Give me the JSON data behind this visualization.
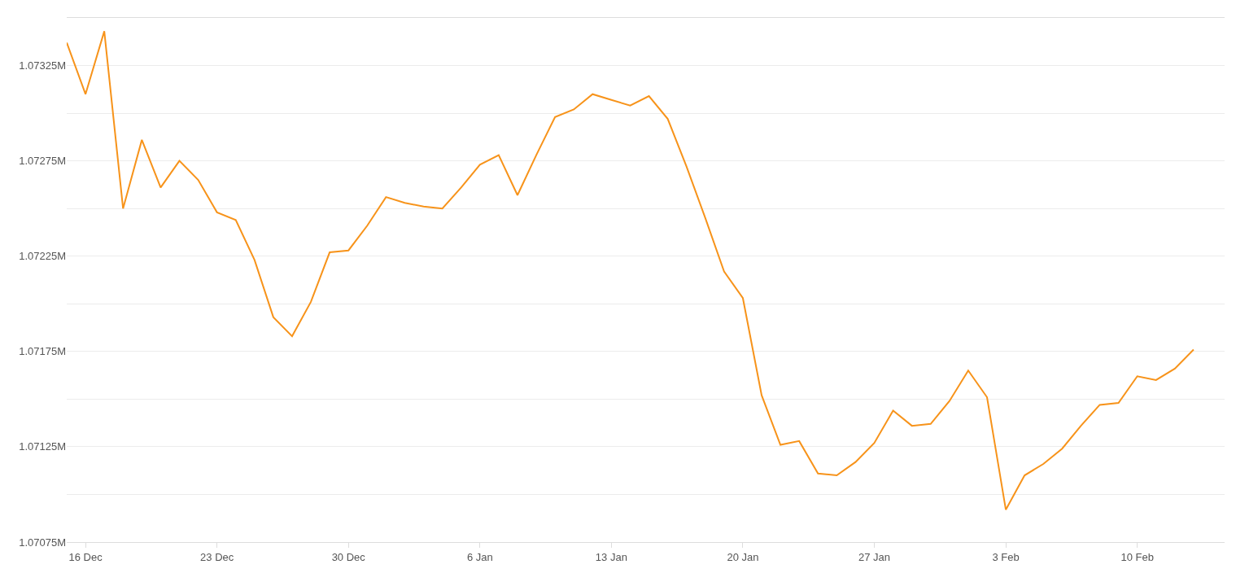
{
  "chart_data": {
    "type": "line",
    "categories": [
      null,
      "16 Dec",
      null,
      null,
      null,
      null,
      null,
      null,
      "23 Dec",
      null,
      null,
      null,
      null,
      null,
      null,
      "30 Dec",
      null,
      null,
      null,
      null,
      null,
      null,
      "6 Jan",
      null,
      null,
      null,
      null,
      null,
      null,
      "13 Jan",
      null,
      null,
      null,
      null,
      null,
      null,
      "20 Jan",
      null,
      null,
      null,
      null,
      null,
      null,
      "27 Jan",
      null,
      null,
      null,
      null,
      null,
      null,
      "3 Feb",
      null,
      null,
      null,
      null,
      null,
      null,
      "10 Feb",
      null,
      null,
      null
    ],
    "series": [
      {
        "color": "#f7931a",
        "values": [
          1.07337,
          1.0731,
          1.07343,
          1.0725,
          1.07286,
          1.07261,
          1.07275,
          1.07265,
          1.07248,
          1.07244,
          1.07223,
          1.07193,
          1.07183,
          1.07201,
          1.07227,
          1.07228,
          1.07241,
          1.07256,
          1.07253,
          1.07251,
          1.0725,
          1.07261,
          1.07273,
          1.07278,
          1.07257,
          1.07278,
          1.07298,
          1.07302,
          1.0731,
          1.07307,
          1.07304,
          1.07309,
          1.07297,
          1.07272,
          1.07245,
          1.07217,
          1.07203,
          1.07152,
          1.07126,
          1.07128,
          1.07111,
          1.0711,
          1.07117,
          1.07127,
          1.07144,
          1.07136,
          1.07137,
          1.07149,
          1.07165,
          1.07151,
          1.07092,
          1.0711,
          1.07116,
          1.07124,
          1.07136,
          1.07147,
          1.07148,
          1.07162,
          1.0716,
          1.07166,
          1.07176
        ]
      }
    ],
    "ylim": [
      1.07075,
      1.0735
    ],
    "yticks": [
      {
        "value": 1.07075,
        "label": "1.07075M"
      },
      {
        "value": 1.071,
        "label": null
      },
      {
        "value": 1.07125,
        "label": "1.07125M"
      },
      {
        "value": 1.0715,
        "label": null
      },
      {
        "value": 1.07175,
        "label": "1.07175M"
      },
      {
        "value": 1.072,
        "label": null
      },
      {
        "value": 1.07225,
        "label": "1.07225M"
      },
      {
        "value": 1.0725,
        "label": null
      },
      {
        "value": 1.07275,
        "label": "1.07275M"
      },
      {
        "value": 1.073,
        "label": null
      },
      {
        "value": 1.07325,
        "label": "1.07325M"
      }
    ],
    "grid": "y",
    "marker": "none",
    "line_style": "solid"
  }
}
